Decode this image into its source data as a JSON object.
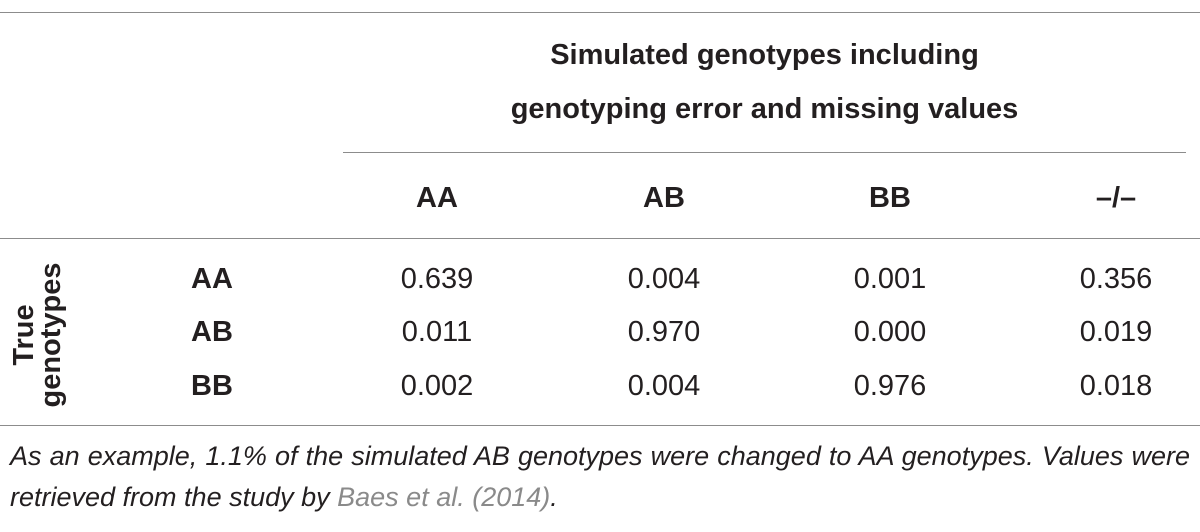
{
  "table": {
    "spanner_header": [
      "Simulated genotypes including",
      "genotyping error and missing values"
    ],
    "row_group_label": [
      "True",
      "genotypes"
    ],
    "columns": [
      "AA",
      "AB",
      "BB",
      "–/–"
    ],
    "rows": [
      {
        "label": "AA",
        "values": [
          "0.639",
          "0.004",
          "0.001",
          "0.356"
        ]
      },
      {
        "label": "AB",
        "values": [
          "0.011",
          "0.970",
          "0.000",
          "0.019"
        ]
      },
      {
        "label": "BB",
        "values": [
          "0.002",
          "0.004",
          "0.976",
          "0.018"
        ]
      }
    ]
  },
  "footnote": {
    "text_before": "As an example, 1.1% of the simulated AB genotypes were changed to AA genotypes. Values were retrieved from the study by ",
    "citation": "Baes et al. (2014)",
    "text_after": "."
  }
}
